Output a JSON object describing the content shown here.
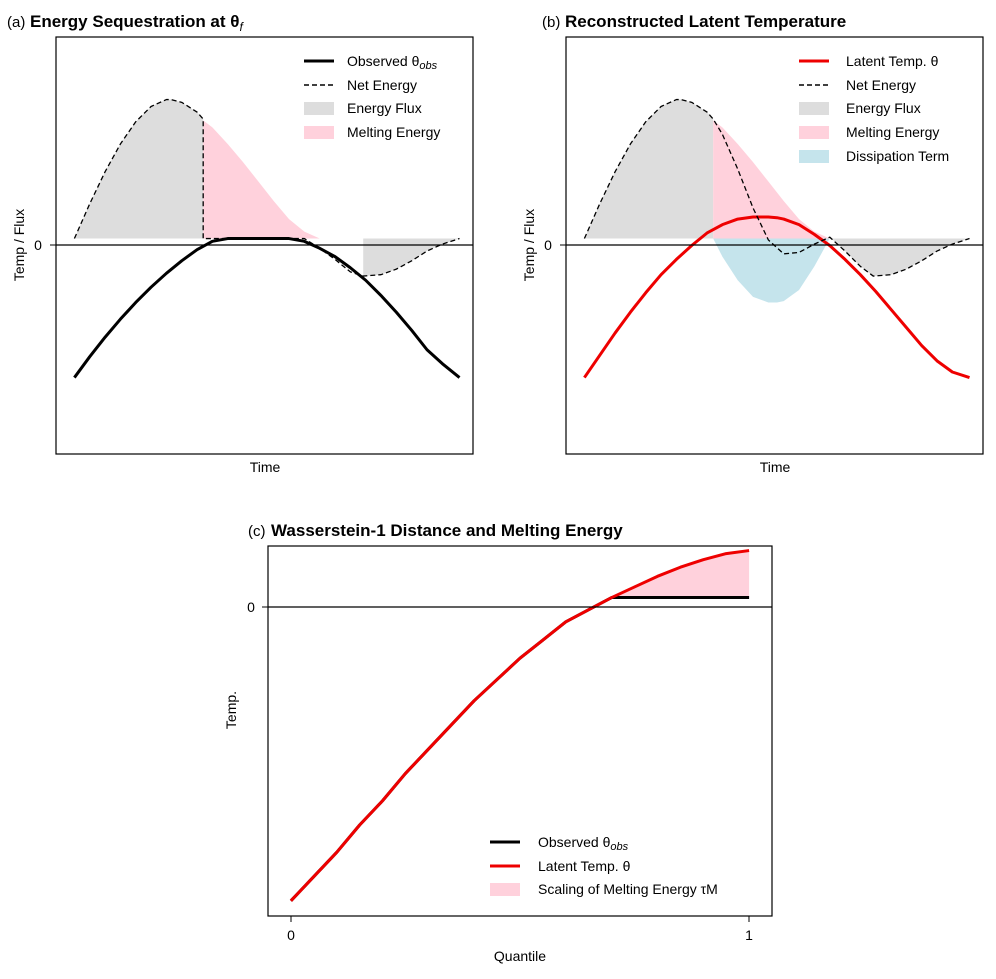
{
  "chart_data": [
    {
      "panel": "a",
      "type": "line",
      "title_prefix": "(a)",
      "title": "Energy Sequestration at θ",
      "title_sub": "f",
      "xlabel": "Time",
      "ylabel": "Temp / Flux",
      "xlim": [
        -0.3,
        6.5
      ],
      "ylim": [
        -1.55,
        1.45
      ],
      "yticks": [
        {
          "value": 0,
          "label": "0"
        }
      ],
      "legend_position": "upper right",
      "series": [
        {
          "name": "Observed θ",
          "name_sub": "obs",
          "style": "solid",
          "color": "#000000",
          "x": [
            0.0,
            0.25,
            0.5,
            0.75,
            1.0,
            1.25,
            1.5,
            1.75,
            2.0,
            2.25,
            2.5,
            2.75,
            3.0,
            3.25,
            3.5,
            3.75,
            4.0,
            4.25,
            4.5,
            4.75,
            5.0,
            5.25,
            5.5,
            5.75,
            6.0,
            6.28
          ],
          "y": [
            -1.0,
            -0.85,
            -0.71,
            -0.58,
            -0.46,
            -0.35,
            -0.25,
            -0.16,
            -0.08,
            -0.02,
            0.0,
            0.0,
            0.0,
            0.0,
            0.0,
            -0.02,
            -0.07,
            -0.13,
            -0.21,
            -0.3,
            -0.41,
            -0.53,
            -0.66,
            -0.8,
            -0.9,
            -1.0
          ]
        },
        {
          "name": "Net Energy",
          "style": "dashed",
          "color": "#000000",
          "x": [
            0.0,
            0.25,
            0.5,
            0.75,
            1.0,
            1.25,
            1.5,
            1.57,
            1.75,
            2.0,
            2.1,
            2.1,
            2.25,
            2.5,
            2.75,
            3.0,
            3.25,
            3.5,
            3.75,
            4.0,
            4.25,
            4.5,
            4.71,
            5.0,
            5.25,
            5.5,
            5.75,
            6.0,
            6.28
          ],
          "y": [
            0.0,
            0.25,
            0.48,
            0.68,
            0.84,
            0.95,
            1.0,
            1.0,
            0.98,
            0.91,
            0.86,
            0.0,
            0.0,
            0.0,
            0.0,
            0.0,
            0.0,
            0.0,
            0.0,
            -0.07,
            -0.15,
            -0.24,
            -0.27,
            -0.26,
            -0.22,
            -0.16,
            -0.09,
            -0.04,
            0.0
          ]
        }
      ],
      "fills": [
        {
          "name": "Energy Flux",
          "color": "#dddddd",
          "x_range": [
            0.0,
            2.1
          ],
          "bound": "Net Energy"
        },
        {
          "name": "Energy Flux",
          "color": "#dddddd",
          "x_range": [
            4.71,
            6.28
          ],
          "bound": "Net Energy"
        },
        {
          "name": "Melting Energy",
          "color": "#ffd1dc",
          "x": [
            2.1,
            2.25,
            2.5,
            2.75,
            3.0,
            3.25,
            3.5,
            3.75,
            4.0
          ],
          "y": [
            0.85,
            0.8,
            0.68,
            0.55,
            0.41,
            0.27,
            0.14,
            0.05,
            0.0
          ]
        }
      ],
      "legend": [
        {
          "kind": "solid",
          "label": "Observed θ",
          "sub": "obs"
        },
        {
          "kind": "dashed",
          "label": "Net Energy"
        },
        {
          "kind": "fill-gray",
          "label": "Energy Flux"
        },
        {
          "kind": "fill-pink",
          "label": "Melting Energy"
        }
      ]
    },
    {
      "panel": "b",
      "type": "line",
      "title_prefix": "(b)",
      "title": "Reconstructed Latent Temperature",
      "xlabel": "Time",
      "ylabel": "Temp / Flux",
      "xlim": [
        -0.3,
        6.5
      ],
      "ylim": [
        -1.55,
        1.45
      ],
      "yticks": [
        {
          "value": 0,
          "label": "0"
        }
      ],
      "legend_position": "upper right",
      "series": [
        {
          "name": "Latent Temp. θ",
          "style": "solid",
          "color": "#ee0000",
          "x": [
            0.0,
            0.25,
            0.5,
            0.75,
            1.0,
            1.25,
            1.5,
            1.75,
            2.0,
            2.25,
            2.5,
            2.75,
            3.0,
            3.14,
            3.25,
            3.5,
            3.75,
            4.0,
            4.25,
            4.5,
            4.75,
            5.0,
            5.25,
            5.5,
            5.75,
            6.0,
            6.28
          ],
          "y": [
            -1.0,
            -0.84,
            -0.68,
            -0.53,
            -0.39,
            -0.26,
            -0.15,
            -0.05,
            0.04,
            0.1,
            0.14,
            0.155,
            0.155,
            0.15,
            0.14,
            0.1,
            0.03,
            -0.05,
            -0.15,
            -0.26,
            -0.38,
            -0.51,
            -0.64,
            -0.77,
            -0.88,
            -0.96,
            -1.0
          ]
        },
        {
          "name": "Net Energy",
          "style": "dashed",
          "color": "#000000",
          "x": [
            0.0,
            0.25,
            0.5,
            0.75,
            1.0,
            1.25,
            1.5,
            1.57,
            1.75,
            2.0,
            2.1,
            2.25,
            2.5,
            2.75,
            3.0,
            3.25,
            3.5,
            3.75,
            4.0,
            4.25,
            4.5,
            4.71,
            5.0,
            5.25,
            5.5,
            5.75,
            6.0,
            6.28
          ],
          "y": [
            0.0,
            0.25,
            0.48,
            0.68,
            0.84,
            0.95,
            1.0,
            1.0,
            0.98,
            0.91,
            0.86,
            0.75,
            0.5,
            0.22,
            -0.01,
            -0.11,
            -0.1,
            -0.04,
            0.01,
            -0.09,
            -0.2,
            -0.27,
            -0.26,
            -0.22,
            -0.16,
            -0.09,
            -0.04,
            0.0
          ]
        }
      ],
      "fills": [
        {
          "name": "Energy Flux",
          "color": "#dddddd",
          "x_range": [
            0.0,
            2.1
          ],
          "bound": "Net Energy"
        },
        {
          "name": "Energy Flux",
          "color": "#dddddd",
          "x_range": [
            4.0,
            6.28
          ],
          "bound": "Net Energy"
        },
        {
          "name": "Melting Energy",
          "color": "#ffd1dc",
          "x": [
            2.1,
            2.25,
            2.5,
            2.75,
            3.0,
            3.25,
            3.5,
            3.75,
            4.0
          ],
          "y": [
            0.85,
            0.8,
            0.68,
            0.55,
            0.41,
            0.27,
            0.14,
            0.05,
            0.0
          ]
        },
        {
          "name": "Dissipation Term",
          "color": "#c5e4ec",
          "x": [
            2.1,
            2.25,
            2.5,
            2.75,
            3.0,
            3.14,
            3.25,
            3.5,
            3.75,
            4.0
          ],
          "y": [
            0.0,
            -0.13,
            -0.3,
            -0.42,
            -0.46,
            -0.46,
            -0.45,
            -0.37,
            -0.2,
            0.0
          ]
        }
      ],
      "legend": [
        {
          "kind": "red",
          "label": "Latent Temp. θ"
        },
        {
          "kind": "dashed",
          "label": "Net Energy"
        },
        {
          "kind": "fill-gray",
          "label": "Energy Flux"
        },
        {
          "kind": "fill-pink",
          "label": "Melting Energy"
        },
        {
          "kind": "fill-blue",
          "label": "Dissipation Term"
        }
      ]
    },
    {
      "panel": "c",
      "type": "line",
      "title_prefix": "(c)",
      "title": "Wasserstein-1 Distance and Melting Energy",
      "xlabel": "Quantile",
      "ylabel": "Temp.",
      "xlim": [
        -0.05,
        1.05
      ],
      "ylim": [
        -1.05,
        0.17
      ],
      "xticks": [
        {
          "value": 0,
          "label": "0"
        },
        {
          "value": 1,
          "label": "1"
        }
      ],
      "yticks": [
        {
          "value": 0,
          "label": "0"
        }
      ],
      "legend_position": "lower right",
      "series": [
        {
          "name": "Observed θ",
          "name_sub": "obs",
          "style": "solid",
          "color": "#000000",
          "x": [
            0.0,
            0.05,
            0.1,
            0.15,
            0.2,
            0.25,
            0.3,
            0.35,
            0.4,
            0.45,
            0.5,
            0.55,
            0.6,
            0.65,
            0.7,
            1.0
          ],
          "y": [
            -1.0,
            -0.92,
            -0.84,
            -0.75,
            -0.67,
            -0.58,
            -0.5,
            -0.42,
            -0.34,
            -0.27,
            -0.2,
            -0.14,
            -0.08,
            -0.04,
            0.0,
            0.0
          ]
        },
        {
          "name": "Latent Temp. θ",
          "style": "solid",
          "color": "#ee0000",
          "x": [
            0.0,
            0.05,
            0.1,
            0.15,
            0.2,
            0.25,
            0.3,
            0.35,
            0.4,
            0.45,
            0.5,
            0.55,
            0.6,
            0.65,
            0.7,
            0.75,
            0.8,
            0.85,
            0.9,
            0.95,
            1.0
          ],
          "y": [
            -1.0,
            -0.92,
            -0.84,
            -0.75,
            -0.67,
            -0.58,
            -0.5,
            -0.42,
            -0.34,
            -0.27,
            -0.2,
            -0.14,
            -0.08,
            -0.04,
            0.0,
            0.035,
            0.07,
            0.1,
            0.125,
            0.145,
            0.155
          ]
        }
      ],
      "fills": [
        {
          "name": "Scaling of Melting Energy τM",
          "color": "#ffd1dc",
          "x": [
            0.7,
            0.75,
            0.8,
            0.85,
            0.9,
            0.95,
            1.0
          ],
          "y": [
            0.0,
            0.035,
            0.07,
            0.1,
            0.125,
            0.145,
            0.155
          ]
        }
      ],
      "legend": [
        {
          "kind": "solid",
          "label": "Observed θ",
          "sub": "obs"
        },
        {
          "kind": "red",
          "label": "Latent Temp. θ"
        },
        {
          "kind": "fill-pink",
          "label": "Scaling of Melting Energy τM"
        }
      ]
    }
  ]
}
